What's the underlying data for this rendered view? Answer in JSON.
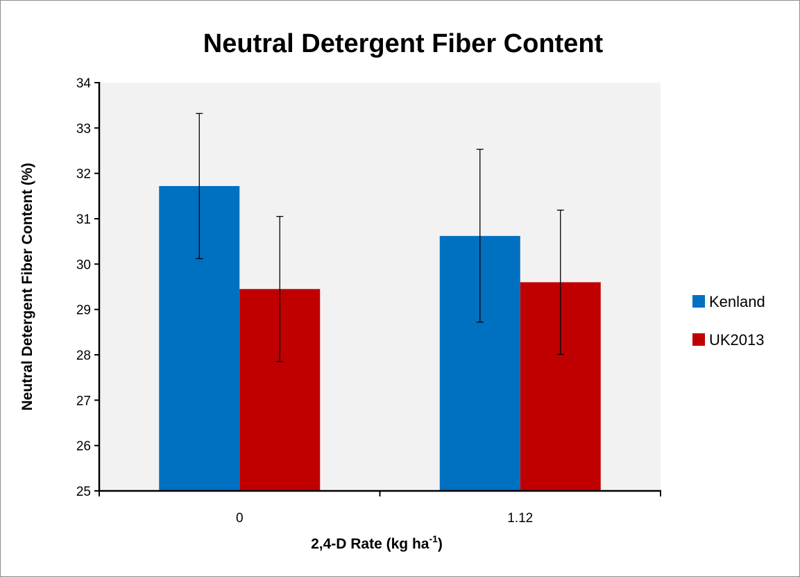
{
  "chart_data": {
    "type": "bar",
    "title": "Neutral Detergent Fiber Content",
    "xlabel": "2,4-D Rate (kg ha",
    "xlabel_superscript": "-1",
    "xlabel_suffix": ")",
    "ylabel": "Neutral Detergent Fiber Content (%)",
    "categories": [
      "0",
      "1.12"
    ],
    "ylim": [
      25,
      34
    ],
    "yticks": [
      25,
      26,
      27,
      28,
      29,
      30,
      31,
      32,
      33,
      34
    ],
    "grid": false,
    "legend_position": "right",
    "series": [
      {
        "name": "Kenland",
        "color": "#0070c0",
        "values": [
          31.72,
          30.62
        ],
        "error_low": [
          30.12,
          28.72
        ],
        "error_high": [
          33.32,
          32.53
        ]
      },
      {
        "name": "UK2013",
        "color": "#c00000",
        "values": [
          29.45,
          29.6
        ],
        "error_low": [
          27.85,
          28.01
        ],
        "error_high": [
          31.05,
          31.19
        ]
      }
    ],
    "plot_background": "#f2f2f2"
  }
}
